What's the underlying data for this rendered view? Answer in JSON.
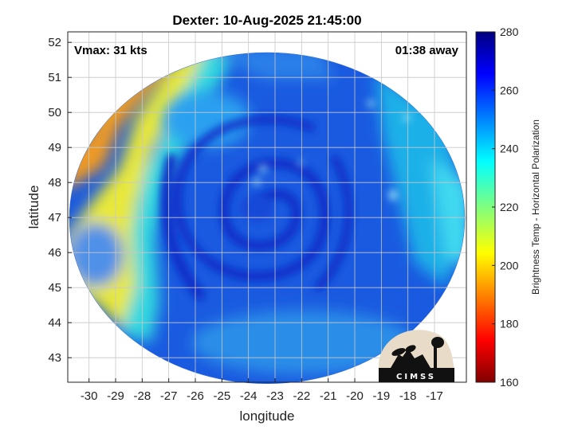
{
  "chart_data": {
    "type": "heatmap",
    "title": "Dexter: 10-Aug-2025 21:45:00",
    "xlabel": "longitude",
    "ylabel": "latitude",
    "xlim": [
      -30.8,
      -15.8
    ],
    "ylim": [
      42.3,
      52.3
    ],
    "x_ticks": [
      -30,
      -29,
      -28,
      -27,
      -26,
      -25,
      -24,
      -23,
      -22,
      -21,
      -20,
      -19,
      -18,
      -17
    ],
    "y_ticks": [
      43,
      44,
      45,
      46,
      47,
      48,
      49,
      50,
      51,
      52
    ],
    "grid": true,
    "annotations": {
      "vmax": "Vmax: 31 kts",
      "time_offset": "01:38 away"
    },
    "storm_center": {
      "lon": -23.9,
      "lat": 47.3
    },
    "colorbar": {
      "label": "Brightness Temp - Horizontal Polarization",
      "range": [
        160,
        280
      ],
      "ticks": [
        160,
        180,
        200,
        220,
        240,
        260,
        280
      ],
      "colormap": "jet"
    },
    "logo_text": "CIMSS"
  },
  "colors": {
    "cold": "#0000a8",
    "mid": "#2ad4f0",
    "warm": "#f0a020",
    "background": "#ffffff",
    "grid": "#d0d0d0"
  }
}
